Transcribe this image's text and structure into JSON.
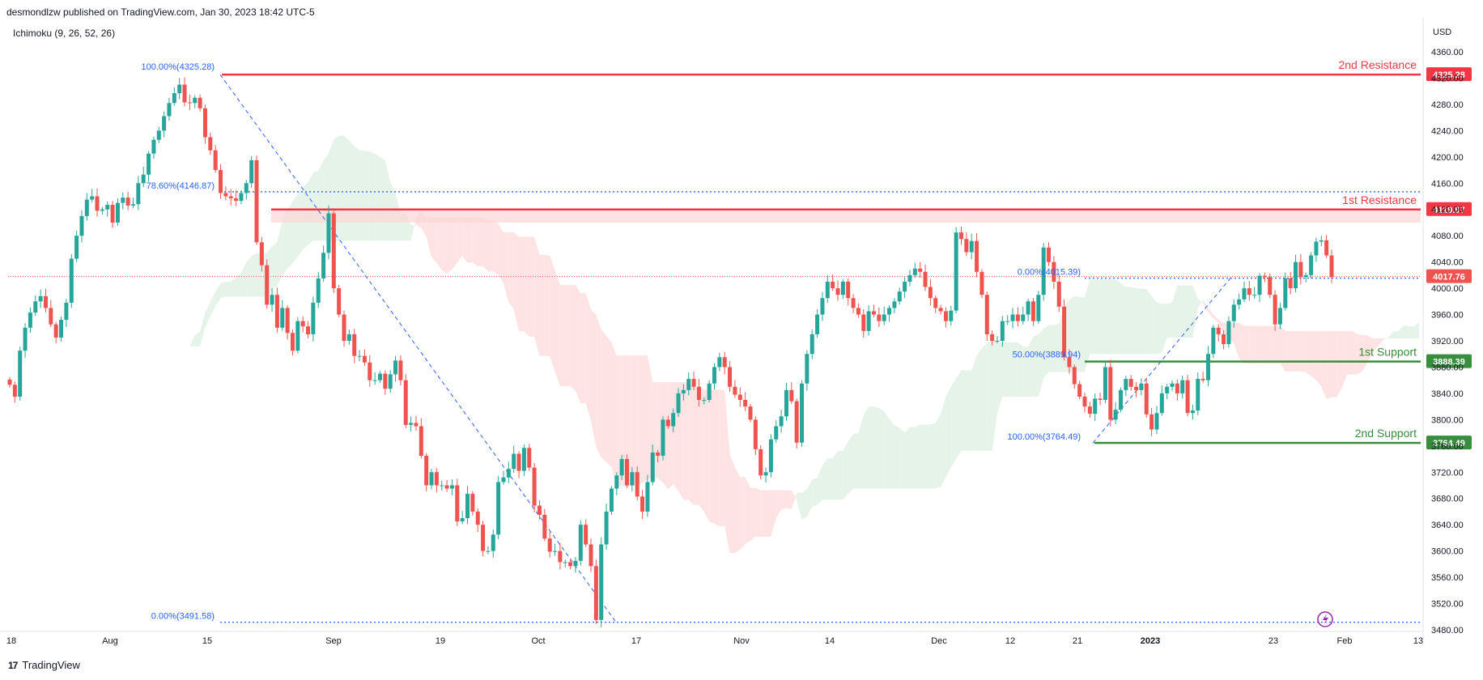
{
  "header": {
    "published": "desmondlzw published on TradingView.com, Jan 30, 2023 18:42 UTC-5",
    "indicator": "Ichimoku (9, 26, 52, 26)",
    "currency": "USD"
  },
  "footer": {
    "brand": "TradingView",
    "logo": "17"
  },
  "colors": {
    "up": "#26a69a",
    "down": "#ef5350",
    "resistance": "#f23645",
    "support": "#388e3c",
    "fib": "#2962ff",
    "cloud_bull": "#e6f3e8",
    "cloud_bear": "#fde3e3",
    "zone": "#fbd5d5",
    "lightning": "#9c27b0"
  },
  "chart_data": {
    "type": "candlestick",
    "symbol_scale": "USD",
    "y_range": [
      3460,
      4380
    ],
    "y_ticks": [
      "4360.00",
      "4320.00",
      "4280.00",
      "4240.00",
      "4200.00",
      "4160.00",
      "4120.00",
      "4080.00",
      "4040.00",
      "4000.00",
      "3960.00",
      "3920.00",
      "3880.00",
      "3840.00",
      "3800.00",
      "3760.00",
      "3720.00",
      "3680.00",
      "3640.00",
      "3600.00",
      "3560.00",
      "3520.00",
      "3480.00"
    ],
    "x_ticks": [
      "18",
      "Aug",
      "15",
      "Sep",
      "19",
      "Oct",
      "17",
      "Nov",
      "14",
      "Dec",
      "12",
      "21",
      "2023",
      "23",
      "Feb",
      "13"
    ],
    "levels": [
      {
        "label": "2nd Resistance",
        "value": 4325.28,
        "price": "4325.28",
        "kind": "resistance"
      },
      {
        "label": "1st Resistance",
        "value": 4119.97,
        "price": "4119.97",
        "kind": "resistance"
      },
      {
        "label": "1st Support",
        "value": 3888.39,
        "price": "3888.39",
        "kind": "support"
      },
      {
        "label": "2nd Support",
        "value": 3764.49,
        "price": "3764.49",
        "kind": "support"
      }
    ],
    "current_price": {
      "value": 4017.76,
      "price": "4017.76"
    },
    "fib_labels": [
      {
        "text": "100.00%(4325.28)",
        "value": 4325.28
      },
      {
        "text": "78.60%(4146.87)",
        "value": 4146.87
      },
      {
        "text": "0.00%(3491.58)",
        "value": 3491.58
      },
      {
        "text": "0.00%(4015.39)",
        "value": 4015.39
      },
      {
        "text": "50.00%(3889.94)",
        "value": 3889.94
      },
      {
        "text": "100.00%(3764.49)",
        "value": 3764.49
      }
    ],
    "closes": [
      3853,
      3835,
      3905,
      3940,
      3963,
      3980,
      3988,
      3970,
      3945,
      3925,
      3952,
      3978,
      4045,
      4080,
      4110,
      4135,
      4140,
      4118,
      4120,
      4127,
      4100,
      4130,
      4138,
      4126,
      4128,
      4160,
      4173,
      4205,
      4226,
      4240,
      4262,
      4282,
      4297,
      4310,
      4283,
      4282,
      4290,
      4274,
      4230,
      4210,
      4180,
      4145,
      4140,
      4137,
      4133,
      4145,
      4160,
      4195,
      4070,
      4035,
      3975,
      3990,
      3940,
      3970,
      3932,
      3905,
      3950,
      3942,
      3930,
      3978,
      4015,
      4054,
      4114,
      4000,
      3960,
      3920,
      3930,
      3897,
      3897,
      3887,
      3860,
      3860,
      3870,
      3847,
      3869,
      3890,
      3860,
      3792,
      3795,
      3790,
      3745,
      3700,
      3720,
      3700,
      3700,
      3695,
      3700,
      3645,
      3650,
      3687,
      3660,
      3640,
      3600,
      3600,
      3625,
      3705,
      3712,
      3725,
      3748,
      3722,
      3757,
      3727,
      3669,
      3655,
      3619,
      3599,
      3600,
      3583,
      3583,
      3577,
      3585,
      3640,
      3610,
      3577,
      3495,
      3610,
      3660,
      3695,
      3715,
      3740,
      3700,
      3720,
      3683,
      3660,
      3705,
      3750,
      3745,
      3800,
      3790,
      3810,
      3840,
      3845,
      3862,
      3850,
      3830,
      3830,
      3855,
      3880,
      3895,
      3880,
      3850,
      3838,
      3830,
      3820,
      3800,
      3755,
      3715,
      3720,
      3770,
      3790,
      3805,
      3845,
      3828,
      3765,
      3855,
      3900,
      3930,
      3960,
      3985,
      4010,
      4000,
      3990,
      4010,
      3985,
      3970,
      3960,
      3935,
      3965,
      3960,
      3950,
      3960,
      3970,
      3980,
      3995,
      4010,
      4020,
      4030,
      4025,
      4002,
      3985,
      3970,
      3965,
      3950,
      3966,
      4085,
      4075,
      4055,
      4072,
      4025,
      3990,
      3930,
      3920,
      3920,
      3950,
      3950,
      3960,
      3950,
      3960,
      3980,
      3950,
      3990,
      4062,
      4040,
      4010,
      3972,
      3895,
      3880,
      3854,
      3835,
      3820,
      3809,
      3832,
      3830,
      3880,
      3800,
      3815,
      3845,
      3862,
      3850,
      3845,
      3855,
      3808,
      3785,
      3810,
      3840,
      3850,
      3855,
      3840,
      3860,
      3810,
      3814,
      3862,
      3860,
      3900,
      3940,
      3930,
      3915,
      3950,
      3975,
      3983,
      4000,
      3990,
      3990,
      4019,
      4017,
      3990,
      3945,
      3970,
      4015,
      4000,
      4040,
      4017,
      4020,
      4050,
      4071,
      4073,
      4050,
      4017
    ]
  }
}
